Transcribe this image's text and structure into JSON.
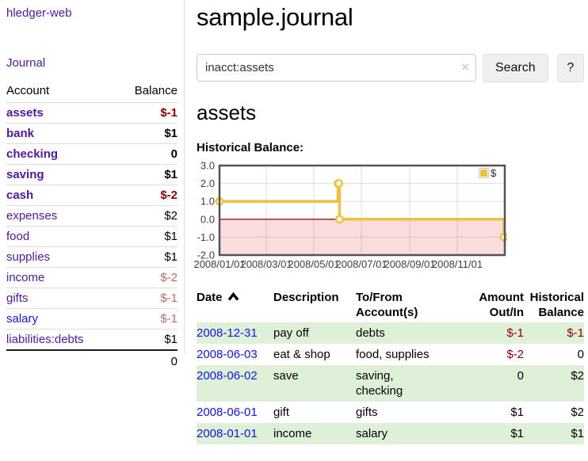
{
  "app": {
    "brand": "hledger-web",
    "nav_journal": "Journal"
  },
  "colors": {
    "link_purple": "#4d1a9c",
    "link_blue": "#1414dd",
    "negative_strong": "#8b0000",
    "negative_muted": "#b56e6e",
    "row_stripe_green": "#dff0d8",
    "series_gold": "#edc240",
    "negative_region_pink": "#f9dcdc",
    "zero_line_red": "#8b1a1a"
  },
  "sidebar": {
    "headers": [
      "Account",
      "Balance"
    ],
    "rows": [
      {
        "account": "assets",
        "balance": "$-1",
        "level": 1,
        "match": true,
        "neg": "strong"
      },
      {
        "account": "bank",
        "balance": "$1",
        "level": 2,
        "match": true,
        "neg": ""
      },
      {
        "account": "checking",
        "balance": "0",
        "level": 3,
        "match": true,
        "neg": ""
      },
      {
        "account": "saving",
        "balance": "$1",
        "level": 3,
        "match": true,
        "neg": ""
      },
      {
        "account": "cash",
        "balance": "$-2",
        "level": 2,
        "match": true,
        "neg": "strong"
      },
      {
        "account": "expenses",
        "balance": "$2",
        "level": 1,
        "match": false,
        "neg": ""
      },
      {
        "account": "food",
        "balance": "$1",
        "level": 2,
        "match": false,
        "neg": ""
      },
      {
        "account": "supplies",
        "balance": "$1",
        "level": 2,
        "match": false,
        "neg": ""
      },
      {
        "account": "income",
        "balance": "$-2",
        "level": 1,
        "match": false,
        "neg": "muted"
      },
      {
        "account": "gifts",
        "balance": "$-1",
        "level": 2,
        "match": false,
        "neg": "muted"
      },
      {
        "account": "salary",
        "balance": "$-1",
        "level": 2,
        "match": false,
        "neg": "muted",
        "link": "blue"
      },
      {
        "account": "liabilities:debts",
        "balance": "$1",
        "level": 1,
        "match": false,
        "neg": ""
      }
    ],
    "total": "0"
  },
  "header": {
    "title": "sample.journal"
  },
  "search": {
    "value": "inacct:assets",
    "clear_icon": "×",
    "button": "Search",
    "help_button": "?"
  },
  "main": {
    "heading": "assets",
    "chart_label": "Historical Balance:"
  },
  "chart_data": {
    "type": "line",
    "style": "step",
    "title": "Historical Balance:",
    "series": [
      {
        "name": "$",
        "color": "#edc240",
        "points": [
          [
            "2008-01-01",
            1
          ],
          [
            "2008-06-01",
            2
          ],
          [
            "2008-06-02",
            2
          ],
          [
            "2008-06-03",
            0
          ],
          [
            "2008-12-31",
            -1
          ]
        ]
      }
    ],
    "x_range": [
      "2008-01-01",
      "2009-01-01"
    ],
    "x_ticks": [
      "2008/01/01",
      "2008/03/01",
      "2008/05/01",
      "2008/07/01",
      "2008/09/01",
      "2008/11/01"
    ],
    "y_ticks": [
      3.0,
      2.0,
      1.0,
      0.0,
      -1.0,
      -2.0
    ],
    "ylim": [
      -2,
      3
    ],
    "grid": true,
    "legend": {
      "position": "top-right",
      "label": "$"
    },
    "negative_region_fill": "#f9dcdc",
    "zero_line_color": "#8b1a1a"
  },
  "register": {
    "headers": [
      "Date",
      "Description",
      "To/From\nAccount(s)",
      "Amount\nOut/In",
      "Historical\nBalance"
    ],
    "sort": "ascending",
    "rows": [
      {
        "date": "2008-12-31",
        "description": "pay off",
        "accounts": "debts",
        "amount": "$-1",
        "balance": "$-1"
      },
      {
        "date": "2008-06-03",
        "description": "eat & shop",
        "accounts": "food, supplies",
        "amount": "$-2",
        "balance": "0"
      },
      {
        "date": "2008-06-02",
        "description": "save",
        "accounts": "saving,\nchecking",
        "amount": "0",
        "balance": "$2"
      },
      {
        "date": "2008-06-01",
        "description": "gift",
        "accounts": "gifts",
        "amount": "$1",
        "balance": "$2"
      },
      {
        "date": "2008-01-01",
        "description": "income",
        "accounts": "salary",
        "amount": "$1",
        "balance": "$1"
      }
    ]
  }
}
